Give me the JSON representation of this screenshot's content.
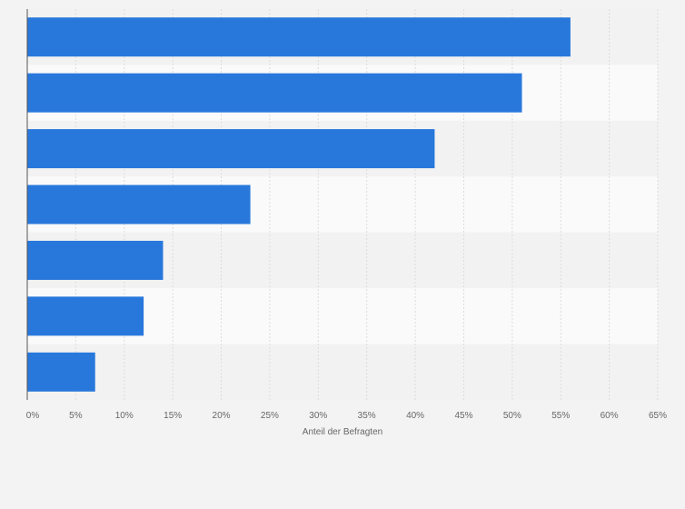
{
  "chart_data": {
    "type": "bar",
    "orientation": "horizontal",
    "title": "",
    "xlabel": "Anteil der Befragten",
    "ylabel": "",
    "categories": [
      "",
      "",
      "",
      "",
      "",
      "",
      ""
    ],
    "values": [
      56,
      51,
      42,
      23,
      14,
      12,
      7
    ],
    "unit": "%",
    "xlim": [
      0,
      65
    ],
    "xticks": [
      0,
      5,
      10,
      15,
      20,
      25,
      30,
      35,
      40,
      45,
      50,
      55,
      60,
      65
    ],
    "xtick_labels": [
      "0%",
      "5%",
      "10%",
      "15%",
      "20%",
      "25%",
      "30%",
      "35%",
      "40%",
      "45%",
      "50%",
      "55%",
      "60%",
      "65%"
    ],
    "grid": true,
    "legend": "none",
    "colors": {
      "bar": "#2878dc",
      "band_dark": "#f2f2f2",
      "band_light": "#fafafa",
      "grid": "#dcdcdc",
      "axis": "#555555"
    }
  }
}
